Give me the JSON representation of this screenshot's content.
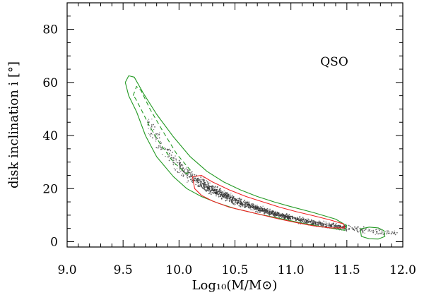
{
  "chart_data": {
    "type": "scatter",
    "title": "",
    "xlabel": "Log₁₀(M/M⊙)",
    "ylabel": "disk inclination i [°]",
    "xlim": [
      9.0,
      12.0
    ],
    "ylim": [
      -2,
      90
    ],
    "xticks": [
      9.0,
      9.5,
      10.0,
      10.5,
      11.0,
      11.5,
      12.0
    ],
    "xtick_labels": [
      "9.0",
      "9.5",
      "10.0",
      "10.5",
      "11.0",
      "11.5",
      "12.0"
    ],
    "yticks": [
      0,
      20,
      40,
      60,
      80
    ],
    "ytick_labels": [
      "0",
      "20",
      "40",
      "60",
      "80"
    ],
    "annotation": "QSO",
    "colors": {
      "green": "#229922",
      "red": "#ee2222",
      "points": "#333333"
    },
    "ridge": {
      "x": [
        9.55,
        9.6,
        9.7,
        9.8,
        9.9,
        10.0,
        10.1,
        10.2,
        10.3,
        10.4,
        10.5,
        10.6,
        10.7,
        10.8,
        10.9,
        11.0,
        11.1,
        11.2,
        11.3,
        11.4,
        11.5,
        11.6,
        11.7,
        11.8,
        11.9
      ],
      "y": [
        58,
        54,
        46,
        39,
        33,
        28.5,
        25,
        22,
        19.5,
        17.5,
        15.5,
        14,
        12.5,
        11.2,
        10,
        9,
        8,
        7.2,
        6.5,
        5.8,
        5.2,
        4.6,
        4.1,
        3.6,
        3.2
      ]
    },
    "series": [
      {
        "name": "green outer contour",
        "style": "solid",
        "x": [
          9.52,
          9.55,
          9.6,
          9.68,
          9.8,
          9.95,
          10.1,
          10.25,
          10.4,
          10.55,
          10.7,
          10.85,
          11.0,
          11.2,
          11.4,
          11.5,
          11.48,
          11.3,
          11.1,
          10.9,
          10.7,
          10.5,
          10.35,
          10.2,
          10.07,
          9.95,
          9.8,
          9.7,
          9.62,
          9.55,
          9.52
        ],
        "y": [
          60,
          62.5,
          62,
          56,
          48,
          39.5,
          32,
          26.5,
          22.5,
          19.5,
          17,
          15,
          13.2,
          11,
          8.5,
          6,
          4.3,
          5.5,
          7,
          8.8,
          10.5,
          12.5,
          14.5,
          17,
          20,
          24.5,
          32,
          40,
          49,
          55,
          60
        ]
      },
      {
        "name": "green dashed contour",
        "style": "dashed",
        "x": [
          9.59,
          9.62,
          9.66,
          9.74,
          9.85,
          9.98,
          10.1,
          10.07,
          9.95,
          9.83,
          9.73,
          9.66,
          9.61,
          9.59
        ],
        "y": [
          55,
          58.5,
          57,
          50,
          42,
          33,
          27,
          25.5,
          30,
          37,
          44,
          50,
          54,
          55
        ]
      },
      {
        "name": "green small contour",
        "style": "solid",
        "x": [
          11.62,
          11.7,
          11.78,
          11.83,
          11.84,
          11.78,
          11.7,
          11.63,
          11.62
        ],
        "y": [
          4.8,
          5.5,
          5.2,
          4.2,
          2.0,
          1.0,
          1.1,
          2.0,
          4.8
        ]
      },
      {
        "name": "red contour",
        "style": "solid",
        "x": [
          10.12,
          10.2,
          10.3,
          10.45,
          10.6,
          10.75,
          10.9,
          11.05,
          11.2,
          11.35,
          11.47,
          11.48,
          11.35,
          11.2,
          11.05,
          10.9,
          10.75,
          10.6,
          10.45,
          10.3,
          10.2,
          10.14,
          10.12
        ],
        "y": [
          24.5,
          25,
          22.5,
          19.5,
          17,
          15,
          13,
          11.3,
          9.8,
          8.2,
          6.7,
          5.2,
          5.2,
          6.0,
          7.2,
          8.5,
          10,
          11.5,
          13,
          15.3,
          17.5,
          20,
          24.5
        ]
      }
    ]
  }
}
